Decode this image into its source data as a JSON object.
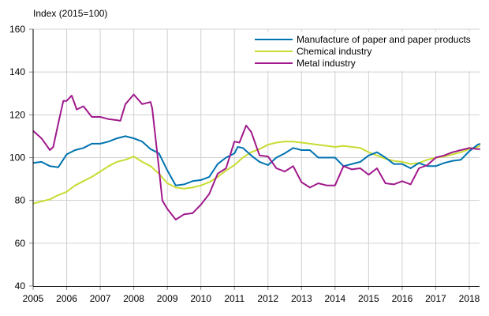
{
  "chart_data": {
    "type": "line",
    "ylabel": "Index (2015=100)",
    "xlabel": "",
    "ylim": [
      40,
      160
    ],
    "yticks": [
      40,
      60,
      80,
      100,
      120,
      140,
      160
    ],
    "xlim": [
      2005,
      2018.33
    ],
    "xticks": [
      "2005",
      "2006",
      "2007",
      "2008",
      "2009",
      "2010",
      "2011",
      "2012",
      "2013",
      "2014",
      "2015",
      "2016",
      "2017",
      "2018"
    ],
    "grid": true,
    "legend_position": "top-right",
    "series": [
      {
        "name": "Manufacture of paper and paper products",
        "color": "#0073b0",
        "x": [
          2005,
          2005.25,
          2005.5,
          2005.75,
          2006,
          2006.25,
          2006.5,
          2006.75,
          2007,
          2007.25,
          2007.5,
          2007.75,
          2008,
          2008.25,
          2008.5,
          2008.75,
          2009,
          2009.25,
          2009.5,
          2009.75,
          2010,
          2010.25,
          2010.5,
          2010.75,
          2011,
          2011.1,
          2011.25,
          2011.5,
          2011.75,
          2012,
          2012.25,
          2012.5,
          2012.75,
          2013,
          2013.25,
          2013.5,
          2013.75,
          2014,
          2014.25,
          2014.5,
          2014.75,
          2015,
          2015.25,
          2015.5,
          2015.75,
          2016,
          2016.25,
          2016.5,
          2016.75,
          2017,
          2017.25,
          2017.5,
          2017.75,
          2018,
          2018.25,
          2018.33
        ],
        "y": [
          97.5,
          98,
          96,
          95.5,
          101.5,
          103.5,
          104.5,
          106.5,
          106.5,
          107.5,
          109,
          110,
          109,
          107.5,
          104,
          102,
          94,
          87,
          87.5,
          89,
          89.5,
          91,
          97,
          100,
          102,
          105,
          104.5,
          101,
          98,
          96.5,
          100,
          102,
          104.5,
          103.5,
          103.5,
          100,
          100,
          100,
          96,
          97,
          98,
          101,
          102.5,
          100,
          97,
          97,
          95,
          97.5,
          96,
          96,
          97.5,
          98.5,
          99,
          103,
          106,
          106.5
        ]
      },
      {
        "name": "Chemical industry",
        "color": "#c8dc32",
        "x": [
          2005,
          2005.25,
          2005.5,
          2005.75,
          2006,
          2006.25,
          2006.5,
          2006.75,
          2007,
          2007.25,
          2007.5,
          2007.75,
          2008,
          2008.25,
          2008.5,
          2008.75,
          2009,
          2009.25,
          2009.5,
          2009.75,
          2010,
          2010.25,
          2010.5,
          2010.75,
          2011,
          2011.25,
          2011.5,
          2011.75,
          2012,
          2012.25,
          2012.5,
          2012.75,
          2013,
          2013.25,
          2013.5,
          2013.75,
          2014,
          2014.25,
          2014.5,
          2014.75,
          2015,
          2015.25,
          2015.5,
          2015.75,
          2016,
          2016.25,
          2016.5,
          2016.75,
          2017,
          2017.25,
          2017.5,
          2017.75,
          2018,
          2018.25,
          2018.33
        ],
        "y": [
          78.5,
          79.5,
          80.5,
          82.5,
          84,
          87,
          89,
          91,
          93.5,
          96,
          98,
          99,
          100.5,
          98,
          96,
          92.5,
          88,
          86,
          85.5,
          86,
          87,
          88.5,
          91,
          94,
          96.5,
          100,
          102.5,
          104,
          106,
          107,
          107.5,
          107.5,
          107,
          106.5,
          106,
          105.5,
          105,
          105.5,
          105,
          104.5,
          102.5,
          101,
          99.5,
          98.5,
          98,
          97,
          97.5,
          99,
          100,
          100.5,
          101.5,
          102.5,
          104,
          105,
          105.5
        ]
      },
      {
        "name": "Metal industry",
        "color": "#a0198c",
        "x": [
          2005,
          2005.25,
          2005.5,
          2005.6,
          2005.75,
          2005.9,
          2006,
          2006.15,
          2006.3,
          2006.5,
          2006.75,
          2007,
          2007.25,
          2007.5,
          2007.6,
          2007.75,
          2008,
          2008.25,
          2008.5,
          2008.55,
          2008.75,
          2008.85,
          2009,
          2009.25,
          2009.5,
          2009.75,
          2010,
          2010.25,
          2010.5,
          2010.75,
          2011,
          2011.15,
          2011.35,
          2011.5,
          2011.75,
          2012,
          2012.25,
          2012.5,
          2012.75,
          2013,
          2013.25,
          2013.5,
          2013.75,
          2014,
          2014.25,
          2014.5,
          2014.75,
          2015,
          2015.25,
          2015.5,
          2015.75,
          2016,
          2016.25,
          2016.5,
          2016.75,
          2017,
          2017.25,
          2017.5,
          2017.75,
          2018,
          2018.25,
          2018.33
        ],
        "y": [
          112.5,
          109,
          103.5,
          105,
          116,
          126.5,
          126.5,
          129,
          122.5,
          124,
          119,
          119,
          118,
          117.5,
          117.2,
          125,
          129.5,
          125,
          126,
          123,
          95,
          80,
          76,
          71,
          73.5,
          74,
          78,
          83,
          92.5,
          95,
          107.5,
          107,
          115,
          112,
          101,
          100.5,
          95,
          93.5,
          96,
          88.5,
          86,
          88,
          87,
          87,
          96,
          94.5,
          95,
          92,
          95,
          88,
          87.5,
          89,
          87.5,
          95,
          96.5,
          100,
          101,
          102.5,
          103.5,
          104.5,
          104,
          104
        ]
      }
    ]
  }
}
